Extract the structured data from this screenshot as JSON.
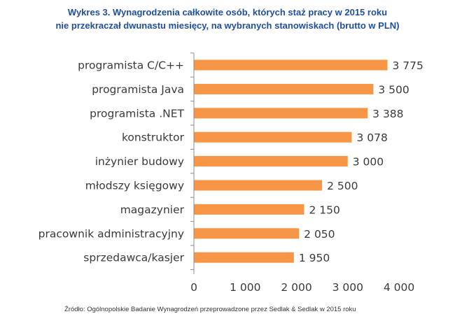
{
  "header": {
    "title_line1": "Wykres 3. Wynagrodzenia całkowite osób, których staż pracy w 2015 roku",
    "title_line2": "nie przekraczał dwunastu miesięcy, na wybranych stanowiskach (brutto w PLN)"
  },
  "footer": {
    "source": "Źródło: Ogólnopolskie Badanie Wynagrodzeń przeprowadzone przez Sedlak & Sedlak w 2015 roku"
  },
  "chart_data": {
    "type": "bar",
    "orientation": "horizontal",
    "title": "Wykres 3. Wynagrodzenia całkowite osób, których staż pracy w 2015 roku nie przekraczał dwunastu miesięcy, na wybranych stanowiskach (brutto w PLN)",
    "categories": [
      "programista C/C++",
      "programista Java",
      "programista .NET",
      "konstruktor",
      "inżynier budowy",
      "młodszy księgowy",
      "magazynier",
      "pracownik administracyjny",
      "sprzedawca/kasjer"
    ],
    "values": [
      3775,
      3500,
      3388,
      3078,
      3000,
      2500,
      2150,
      2050,
      1950
    ],
    "value_labels": [
      "3 775",
      "3 500",
      "3 388",
      "3 078",
      "3 000",
      "2 500",
      "2 150",
      "2 050",
      "1 950"
    ],
    "xlim": [
      0,
      4000
    ],
    "x_ticks": [
      0,
      1000,
      2000,
      3000,
      4000
    ],
    "x_tick_labels": [
      "0",
      "1 000",
      "2 000",
      "3 000",
      "4 000"
    ],
    "xlabel": "",
    "ylabel": "",
    "grid": false,
    "legend": "none",
    "bar_color": "#f79646"
  }
}
